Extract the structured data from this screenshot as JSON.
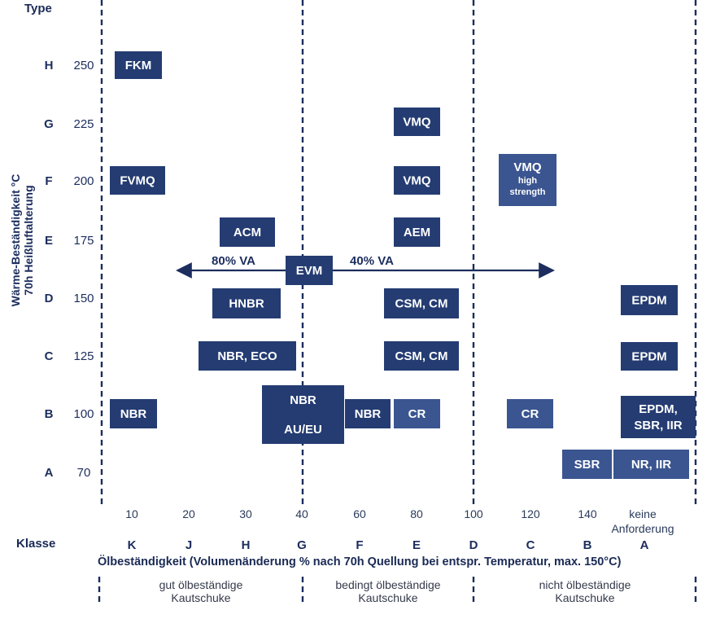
{
  "chart_data": {
    "type": "table",
    "y_title": "Type",
    "ylabel_line1": "Wärme-Beständigkeit °C",
    "ylabel_line2": "70h Heißluftalterung",
    "y_letters": [
      "H",
      "G",
      "F",
      "E",
      "D",
      "C",
      "B",
      "A"
    ],
    "y_values": [
      "250",
      "225",
      "200",
      "175",
      "150",
      "125",
      "100",
      "70"
    ],
    "x_ticks": [
      "10",
      "20",
      "30",
      "40",
      "60",
      "80",
      "100",
      "120",
      "140",
      "keine",
      "Anforderung"
    ],
    "klasse_title": "Klasse",
    "klassen": [
      "K",
      "J",
      "H",
      "G",
      "F",
      "E",
      "D",
      "C",
      "B",
      "A"
    ],
    "xlabel": "Ölbeständigkeit (Volumenänderung % nach 70h Quellung bei entspr. Temperatur, max. 150°C)",
    "groups": [
      {
        "line1": "gut ölbeständige",
        "line2": "Kautschuke"
      },
      {
        "line1": "bedingt ölbeständige",
        "line2": "Kautschuke"
      },
      {
        "line1": "nicht ölbeständige",
        "line2": "Kautschuke"
      }
    ],
    "materials": [
      {
        "label": "FKM",
        "type": "H",
        "klasse": "K"
      },
      {
        "label": "VMQ",
        "type": "G",
        "klasse": "E"
      },
      {
        "label": "FVMQ",
        "type": "F",
        "klasse": "K"
      },
      {
        "label": "VMQ",
        "type": "F",
        "klasse": "E"
      },
      {
        "label": "VMQ",
        "sub1": "high",
        "sub2": "strength",
        "type": "F",
        "klasse": "C"
      },
      {
        "label": "ACM",
        "type": "E",
        "klasse": "H"
      },
      {
        "label": "AEM",
        "type": "E",
        "klasse": "E"
      },
      {
        "label": "EVM",
        "type": "D-E",
        "klasse": "G"
      },
      {
        "label": "HNBR",
        "type": "D",
        "klasse": "H"
      },
      {
        "label": "CSM, CM",
        "type": "D",
        "klasse": "E"
      },
      {
        "label": "EPDM",
        "type": "D",
        "klasse": "A"
      },
      {
        "label": "NBR, ECO",
        "type": "C",
        "klasse": "H-G"
      },
      {
        "label": "CSM, CM",
        "type": "C",
        "klasse": "E"
      },
      {
        "label": "EPDM",
        "type": "C",
        "klasse": "A"
      },
      {
        "label": "NBR",
        "type": "B",
        "klasse": "K"
      },
      {
        "label": "NBR",
        "label2": "AU/EU",
        "type": "B",
        "klasse": "G"
      },
      {
        "label": "NBR",
        "type": "B",
        "klasse": "F"
      },
      {
        "label": "CR",
        "type": "B",
        "klasse": "E"
      },
      {
        "label": "CR",
        "type": "B",
        "klasse": "C"
      },
      {
        "label": "EPDM,",
        "label2": "SBR, IIR",
        "type": "B",
        "klasse": "A"
      },
      {
        "label": "SBR",
        "type": "A",
        "klasse": "B"
      },
      {
        "label": "NR, IIR",
        "type": "A",
        "klasse": "A"
      }
    ],
    "evm_range": {
      "left_label": "80% VA",
      "right_label": "40% VA"
    },
    "colors": {
      "box_dark": "#243c72",
      "box_light": "#3a5590",
      "axis_text": "#1c2d5e",
      "gridline": "#1c2d5e"
    }
  }
}
